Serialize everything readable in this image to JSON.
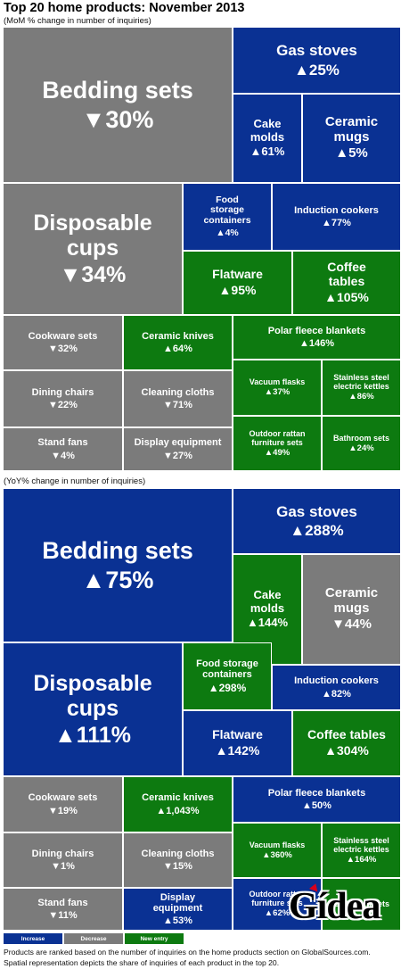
{
  "title": "Top 20 home products: November 2013",
  "colors": {
    "increase": "#0a3193",
    "decrease": "#7b7b7b",
    "new_entry": "#0d7a10"
  },
  "chart_data": [
    {
      "type": "treemap",
      "subtitle": "(MoM % change in number of inquiries)",
      "items": [
        {
          "label": "Bedding sets",
          "change": "▼30%",
          "value": -30,
          "status": "decrease"
        },
        {
          "label": "Gas stoves",
          "change": "▲25%",
          "value": 25,
          "status": "increase"
        },
        {
          "label": "Cake molds",
          "change": "▲61%",
          "value": 61,
          "status": "increase"
        },
        {
          "label": "Ceramic mugs",
          "change": "▲5%",
          "value": 5,
          "status": "increase"
        },
        {
          "label": "Disposable cups",
          "change": "▼34%",
          "value": -34,
          "status": "decrease"
        },
        {
          "label": "Food storage containers",
          "change": "▲4%",
          "value": 4,
          "status": "increase"
        },
        {
          "label": "Induction cookers",
          "change": "▲77%",
          "value": 77,
          "status": "increase"
        },
        {
          "label": "Flatware",
          "change": "▲95%",
          "value": 95,
          "status": "new_entry"
        },
        {
          "label": "Coffee tables",
          "change": "▲105%",
          "value": 105,
          "status": "new_entry"
        },
        {
          "label": "Cookware sets",
          "change": "▼32%",
          "value": -32,
          "status": "decrease"
        },
        {
          "label": "Ceramic knives",
          "change": "▲64%",
          "value": 64,
          "status": "new_entry"
        },
        {
          "label": "Polar fleece blankets",
          "change": "▲146%",
          "value": 146,
          "status": "new_entry"
        },
        {
          "label": "Dining chairs",
          "change": "▼22%",
          "value": -22,
          "status": "decrease"
        },
        {
          "label": "Cleaning cloths",
          "change": "▼71%",
          "value": -71,
          "status": "decrease"
        },
        {
          "label": "Vacuum flasks",
          "change": "▲37%",
          "value": 37,
          "status": "new_entry"
        },
        {
          "label": "Stainless steel electric kettles",
          "change": "▲86%",
          "value": 86,
          "status": "new_entry"
        },
        {
          "label": "Stand fans",
          "change": "▼4%",
          "value": -4,
          "status": "decrease"
        },
        {
          "label": "Display equipment",
          "change": "▼27%",
          "value": -27,
          "status": "decrease"
        },
        {
          "label": "Outdoor rattan furniture sets",
          "change": "▲49%",
          "value": 49,
          "status": "new_entry"
        },
        {
          "label": "Bathroom sets",
          "change": "▲24%",
          "value": 24,
          "status": "new_entry"
        }
      ]
    },
    {
      "type": "treemap",
      "subtitle": "(YoY% change in number of inquiries)",
      "items": [
        {
          "label": "Bedding sets",
          "change": "▲75%",
          "value": 75,
          "status": "increase"
        },
        {
          "label": "Gas stoves",
          "change": "▲288%",
          "value": 288,
          "status": "increase"
        },
        {
          "label": "Cake molds",
          "change": "▲144%",
          "value": 144,
          "status": "new_entry"
        },
        {
          "label": "Ceramic mugs",
          "change": "▼44%",
          "value": -44,
          "status": "decrease"
        },
        {
          "label": "Disposable cups",
          "change": "▲111%",
          "value": 111,
          "status": "increase"
        },
        {
          "label": "Food storage containers",
          "change": "▲298%",
          "value": 298,
          "status": "new_entry"
        },
        {
          "label": "Induction cookers",
          "change": "▲82%",
          "value": 82,
          "status": "increase"
        },
        {
          "label": "Flatware",
          "change": "▲142%",
          "value": 142,
          "status": "increase"
        },
        {
          "label": "Coffee tables",
          "change": "▲304%",
          "value": 304,
          "status": "new_entry"
        },
        {
          "label": "Cookware sets",
          "change": "▼19%",
          "value": -19,
          "status": "decrease"
        },
        {
          "label": "Ceramic knives",
          "change": "▲1,043%",
          "value": 1043,
          "status": "new_entry"
        },
        {
          "label": "Polar fleece blankets",
          "change": "▲50%",
          "value": 50,
          "status": "increase"
        },
        {
          "label": "Dining chairs",
          "change": "▼1%",
          "value": -1,
          "status": "decrease"
        },
        {
          "label": "Cleaning cloths",
          "change": "▼15%",
          "value": -15,
          "status": "decrease"
        },
        {
          "label": "Vacuum flasks",
          "change": "▲360%",
          "value": 360,
          "status": "new_entry"
        },
        {
          "label": "Stainless steel electric kettles",
          "change": "▲164%",
          "value": 164,
          "status": "new_entry"
        },
        {
          "label": "Stand fans",
          "change": "▼11%",
          "value": -11,
          "status": "decrease"
        },
        {
          "label": "Display equipment",
          "change": "▲53%",
          "value": 53,
          "status": "increase"
        },
        {
          "label": "Outdoor rattan furniture sets",
          "change": "▲62%",
          "value": 62,
          "status": "increase"
        },
        {
          "label": "Bathroom sets",
          "change": "",
          "value": null,
          "status": "new_entry"
        }
      ]
    }
  ],
  "legend": {
    "increase": "Increase",
    "decrease": "Decrease",
    "new_entry": "New entry"
  },
  "notes": [
    "Products are ranked based on the number of inquiries on the home products section on GlobalSources.com.",
    "Spatial representation depicts the share of inquiries of each product in the top 20."
  ],
  "logo": {
    "text": "Gídea"
  }
}
